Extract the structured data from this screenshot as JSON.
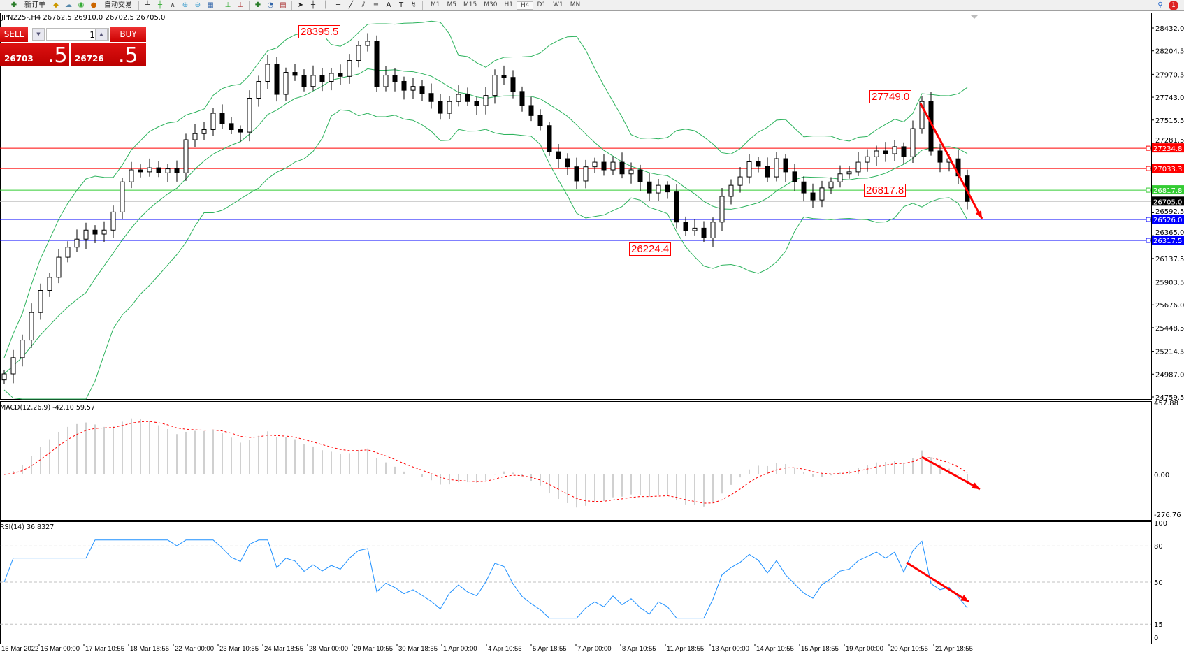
{
  "toolbar": {
    "new_order": "新订单",
    "auto_trading": "自动交易",
    "timeframes": [
      "M1",
      "M5",
      "M15",
      "M30",
      "H1",
      "H4",
      "D1",
      "W1",
      "MN"
    ],
    "active_timeframe": "H4",
    "notification_count": "1"
  },
  "symbol_info": "JPN225-,H4  26762.5 26910.0 26702.5 26705.0",
  "trade_panel": {
    "sell_label": "SELL",
    "buy_label": "BUY",
    "lot": "1.00",
    "sell_price_main": "26703",
    "sell_price_big": ".5",
    "buy_price_main": "26726",
    "buy_price_big": ".5"
  },
  "annotations": [
    {
      "text": "28395.5",
      "price": 28395.5
    },
    {
      "text": "27749.0",
      "price": 27749.0
    },
    {
      "text": "26817.8",
      "price": 26817.8
    },
    {
      "text": "26224.4",
      "price": 26224.4
    }
  ],
  "colors": {
    "candle_up": "#ffffff",
    "candle_down": "#000000",
    "bollinger": "#2db35d",
    "macd_hist": "#c0c0c0",
    "macd_signal": "#ff0000",
    "rsi": "#1e90ff",
    "arrow": "#ff0000",
    "resistance": "#ff0000",
    "support_green": "#33cc33",
    "support_blue": "#0000ff"
  },
  "macd": {
    "label": "MACD(12,26,9) -42.10 59.57",
    "ticks": [
      "457.88",
      "0.00",
      "-276.76"
    ]
  },
  "rsi": {
    "label": "RSI(14) 36.8327",
    "ticks": [
      "100",
      "80",
      "50",
      "15",
      "0"
    ]
  },
  "chart_data": {
    "type": "candlestick",
    "symbol": "JPN225-",
    "timeframe": "H4",
    "price_axis_ticks": [
      "28432.0",
      "28204.5",
      "27970.5",
      "27743.0",
      "27515.5",
      "27281.5",
      "26592.5",
      "26365.0",
      "26137.5",
      "25903.5",
      "25676.0",
      "25448.5",
      "25214.5",
      "24987.0",
      "24759.5"
    ],
    "ylim": [
      24759.5,
      28432.0
    ],
    "time_axis_labels": [
      "15 Mar 2022",
      "16 Mar 00:00",
      "17 Mar 10:55",
      "18 Mar 18:55",
      "22 Mar 00:00",
      "23 Mar 10:55",
      "24 Mar 18:55",
      "28 Mar 00:00",
      "29 Mar 10:55",
      "30 Mar 18:55",
      "1 Apr 00:00",
      "4 Apr 10:55",
      "5 Apr 18:55",
      "7 Apr 00:00",
      "8 Apr 10:55",
      "11 Apr 18:55",
      "13 Apr 00:00",
      "14 Apr 10:55",
      "15 Apr 18:55",
      "19 Apr 00:00",
      "20 Apr 10:55",
      "21 Apr 18:55"
    ],
    "horizontal_lines": [
      {
        "price": 27234.8,
        "label": "27234.8",
        "color": "#ff0000"
      },
      {
        "price": 27033.3,
        "label": "27033.3",
        "color": "#ff0000"
      },
      {
        "price": 26817.8,
        "label": "26817.8",
        "color": "#33cc33"
      },
      {
        "price": 26705.0,
        "label": "26705.0",
        "color": "#000000"
      },
      {
        "price": 26526.0,
        "label": "26526.0",
        "color": "#0000ff"
      },
      {
        "price": 26317.5,
        "label": "26317.5",
        "color": "#0000ff"
      }
    ],
    "closes": [
      24989,
      25150,
      25326,
      25600,
      25820,
      25950,
      26150,
      26250,
      26330,
      26420,
      26380,
      26420,
      26600,
      26900,
      27020,
      27000,
      27040,
      26990,
      27030,
      26990,
      27319,
      27380,
      27420,
      27583,
      27480,
      27420,
      27395,
      27733,
      27900,
      28070,
      27771,
      27990,
      27960,
      27850,
      27960,
      27900,
      27980,
      27950,
      28108,
      28258,
      28300,
      27848,
      27962,
      27900,
      27812,
      27850,
      27780,
      27700,
      27583,
      27700,
      27771,
      27700,
      27660,
      27760,
      27962,
      27940,
      27800,
      27660,
      27560,
      27460,
      27200,
      27131,
      27050,
      26909,
      27050,
      27096,
      27020,
      27096,
      26980,
      27020,
      26900,
      26790,
      26866,
      26800,
      26500,
      26415,
      26440,
      26342,
      26500,
      26756,
      26866,
      26950,
      27100,
      27055,
      26950,
      27131,
      27000,
      26900,
      26790,
      26720,
      26840,
      26900,
      26980,
      27000,
      27096,
      27150,
      27208,
      27180,
      27250,
      27150,
      27430,
      27700,
      27208,
      27096,
      27130,
      26960,
      26705
    ],
    "indicators": [
      "Bollinger Bands(20,2)",
      "MACD(12,26,9)",
      "RSI(14)"
    ]
  }
}
